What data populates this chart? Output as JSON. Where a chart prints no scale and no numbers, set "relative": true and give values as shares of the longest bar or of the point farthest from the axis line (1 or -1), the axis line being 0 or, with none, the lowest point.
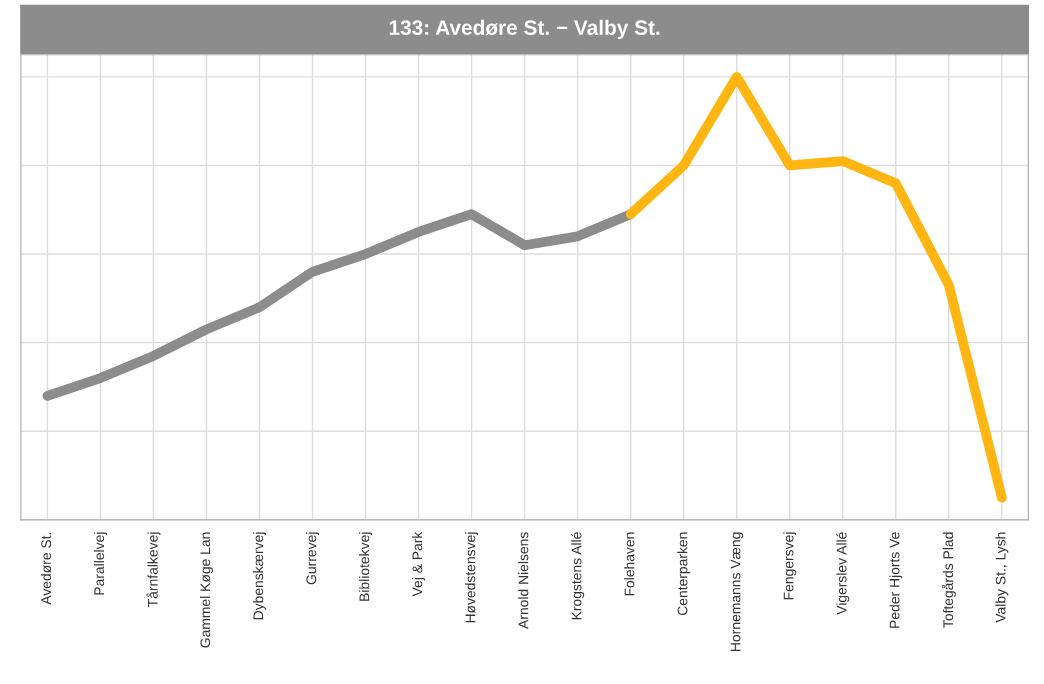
{
  "chart_data": {
    "type": "line",
    "title": "133: Avedøre St. − Valby St.",
    "relative": true,
    "grid": true,
    "marker": "none",
    "line_style": "solid",
    "categories": [
      "Avedøre St.",
      "Parallelvej",
      "Tårnfalkevej",
      "Gammel Køge Lan",
      "Dybenskærvej",
      "Gurrevej",
      "Bibliotekvej",
      "Vej & Park",
      "Høvedstensvej",
      "Arnold Nielsens",
      "Krogstens Allé",
      "Folehaven",
      "Centerparken",
      "Hornemanns Væng",
      "Fengersvej",
      "Vigerslev Allé",
      "Peder Hjorts Ve",
      "Toftegårds Plad",
      "Valby St., Lysh"
    ],
    "series": [
      {
        "color": "#8c8c8c",
        "values": [
          0.28,
          0.32,
          0.37,
          0.43,
          0.48,
          0.56,
          0.6,
          0.65,
          0.69,
          0.62,
          0.64,
          0.69,
          null,
          null,
          null,
          null,
          null,
          null,
          null
        ]
      },
      {
        "color": "#ffb612",
        "values": [
          null,
          null,
          null,
          null,
          null,
          null,
          null,
          null,
          null,
          null,
          null,
          0.69,
          0.8,
          1,
          0.8,
          0.81,
          0.76,
          0.53,
          0.05
        ]
      }
    ]
  }
}
